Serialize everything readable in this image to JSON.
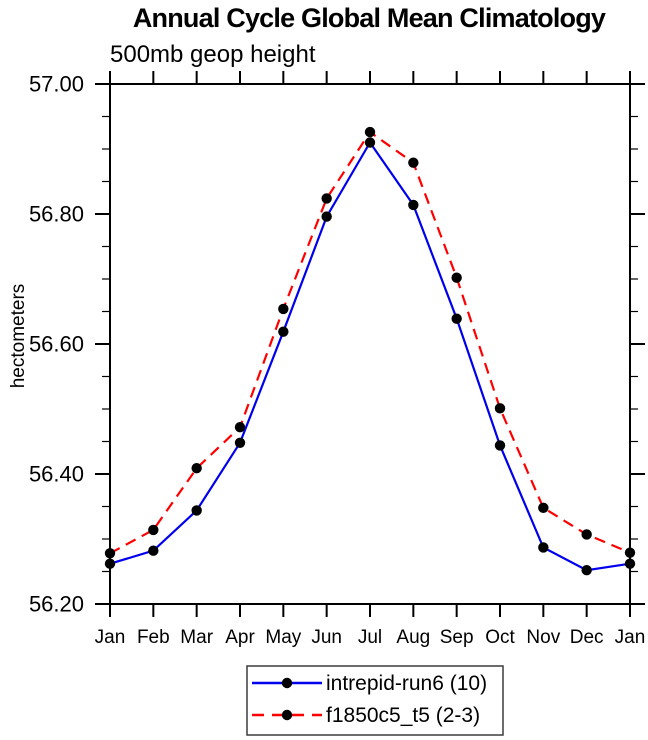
{
  "title": "Annual Cycle Global Mean Climatology",
  "subtitle": "500mb geop height",
  "y_axis": {
    "label": "hectometers",
    "tick_labels": [
      "57.00",
      "56.80",
      "56.60",
      "56.40",
      "56.20"
    ],
    "major_step": 0.2,
    "minor_step": 0.05
  },
  "x_axis": {
    "tick_labels": [
      "Jan",
      "Feb",
      "Mar",
      "Apr",
      "May",
      "Jun",
      "Jul",
      "Aug",
      "Sep",
      "Oct",
      "Nov",
      "Dec",
      "Jan"
    ]
  },
  "legend": {
    "position": "bottom-center",
    "entries": [
      {
        "label": "intrepid-run6 (10)",
        "line": "solid",
        "color": "#0000ee",
        "marker": "black-dot"
      },
      {
        "label": "f1850c5_t5 (2-3)",
        "line": "dashed",
        "color": "#ff0000",
        "marker": "black-dot"
      }
    ]
  },
  "colors": {
    "axis": "#000000",
    "marker": "#000000",
    "background": "#ffffff",
    "series1": "#0000ee",
    "series2": "#ff0000"
  },
  "chart_data": {
    "type": "line",
    "title": "Annual Cycle Global Mean Climatology",
    "subtitle": "500mb geop height",
    "xlabel": "",
    "ylabel": "hectometers",
    "categories": [
      "Jan",
      "Feb",
      "Mar",
      "Apr",
      "May",
      "Jun",
      "Jul",
      "Aug",
      "Sep",
      "Oct",
      "Nov",
      "Dec",
      "Jan"
    ],
    "series": [
      {
        "name": "intrepid-run6 (10)",
        "color": "#0000ee",
        "line_style": "solid",
        "marker": "black-dot",
        "values": [
          56.262,
          56.282,
          56.344,
          56.448,
          56.619,
          56.796,
          56.91,
          56.814,
          56.639,
          56.444,
          56.287,
          56.252,
          56.262
        ]
      },
      {
        "name": "f1850c5_t5 (2-3)",
        "color": "#ff0000",
        "line_style": "dashed",
        "marker": "black-dot",
        "values": [
          56.278,
          56.314,
          56.409,
          56.472,
          56.654,
          56.824,
          56.926,
          56.879,
          56.702,
          56.501,
          56.348,
          56.307,
          56.279
        ]
      }
    ],
    "ylim": [
      56.2,
      57.0
    ],
    "y_major_ticks": [
      56.2,
      56.4,
      56.6,
      56.8,
      57.0
    ],
    "y_minor_step": 0.05,
    "grid": false,
    "frame": "box-with-outward-ticks",
    "legend_position": "bottom-center"
  }
}
